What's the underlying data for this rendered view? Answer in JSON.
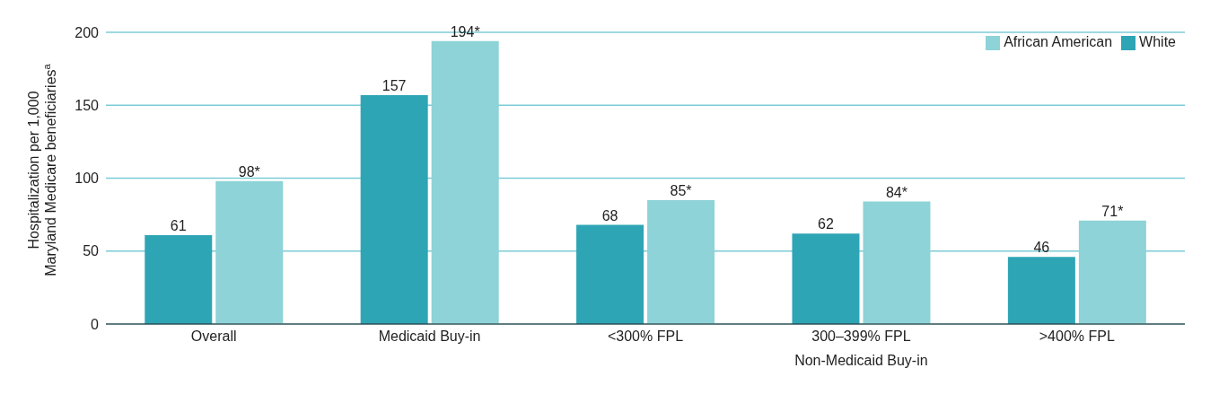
{
  "chart_data": {
    "type": "bar",
    "ylabel": "Hospitalization per 1,000\nMaryland Medicare beneficiaries$^{a}$",
    "categories": [
      "Overall",
      "Medicaid Buy-in",
      "<300% FPL",
      "300–399% FPL",
      ">400% FPL"
    ],
    "series": [
      {
        "name": "White",
        "color": "#2ea5b5",
        "values": [
          61,
          157,
          68,
          62,
          46
        ],
        "value_labels": [
          "61",
          "157",
          "68",
          "62",
          "46"
        ]
      },
      {
        "name": "African American",
        "color": "#8dd3d7",
        "values": [
          98,
          194,
          85,
          84,
          71
        ],
        "value_labels": [
          "98*",
          "194*",
          "85*",
          "84*",
          "71*"
        ]
      }
    ],
    "ylim": [
      0,
      200
    ],
    "yticks": [
      0,
      50,
      100,
      150,
      200
    ],
    "grid": "y",
    "legend": "top right",
    "annotations": [
      "Non-Medicaid Buy-in"
    ]
  }
}
